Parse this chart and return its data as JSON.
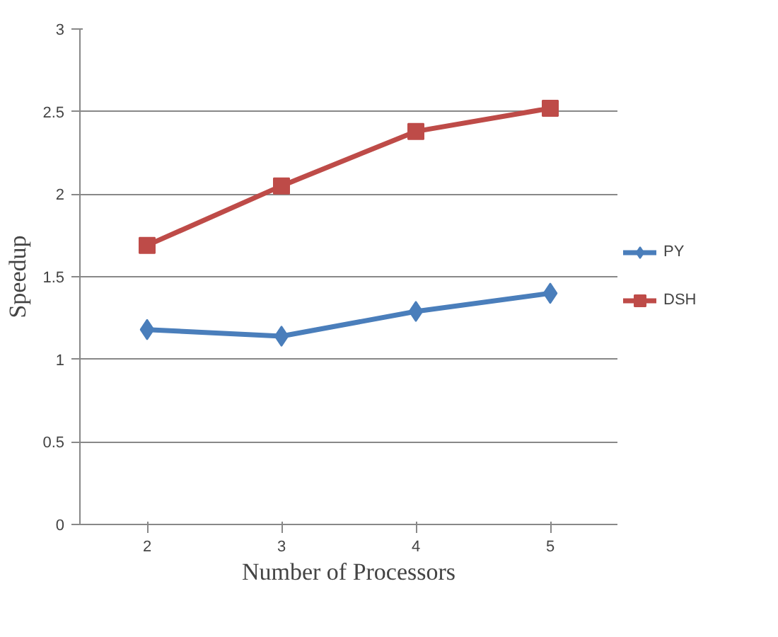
{
  "chart_data": {
    "type": "line",
    "xlabel": "Number of Processors",
    "ylabel": "Speedup",
    "categories": [
      "2",
      "3",
      "4",
      "5"
    ],
    "series": [
      {
        "name": "PY",
        "color": "#4a7ebb",
        "marker": "diamond",
        "values": [
          1.18,
          1.14,
          1.29,
          1.4
        ]
      },
      {
        "name": "DSH",
        "color": "#be4b48",
        "marker": "square",
        "values": [
          1.69,
          2.05,
          2.38,
          2.52
        ]
      }
    ],
    "ylim": [
      0,
      3
    ],
    "yticks": [
      0,
      0.5,
      1,
      1.5,
      2,
      2.5,
      3
    ],
    "grid": "y",
    "legend": "right"
  }
}
